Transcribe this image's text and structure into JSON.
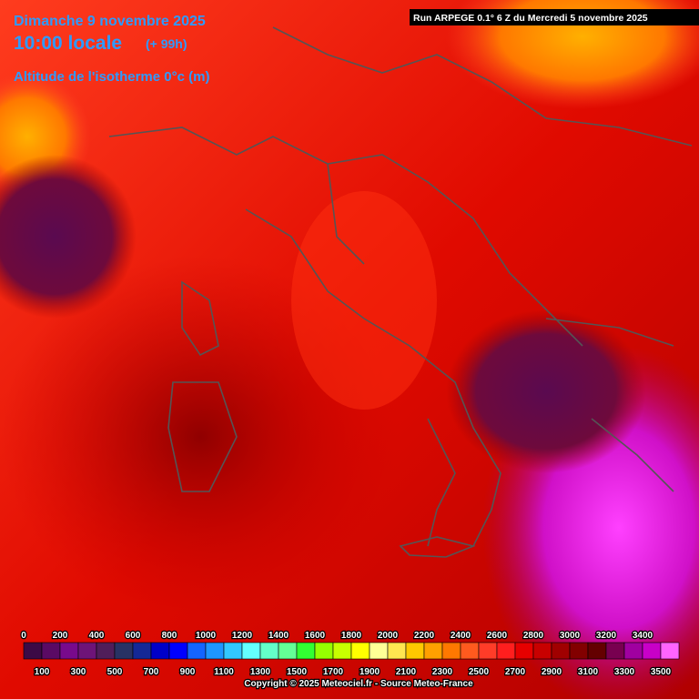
{
  "header": {
    "date": "Dimanche 9 novembre 2025",
    "time": "10:00 locale",
    "lead": "(+ 99h)",
    "field": "Altitude de l'isotherme 0°c (m)",
    "run": "Run ARPEGE 0.1° 6 Z du Mercredi 5 novembre 2025"
  },
  "legend": {
    "thresholds": [
      0,
      100,
      200,
      300,
      400,
      500,
      600,
      700,
      800,
      900,
      1000,
      1100,
      1200,
      1300,
      1400,
      1500,
      1600,
      1700,
      1800,
      1900,
      2000,
      2100,
      2200,
      2300,
      2400,
      2500,
      2600,
      2700,
      2800,
      2900,
      3000,
      3100,
      3200,
      3300,
      3400,
      3500
    ],
    "colors": [
      "#3c0a46",
      "#5a0a64",
      "#780a8c",
      "#6e1478",
      "#501e5a",
      "#283264",
      "#142896",
      "#0000c8",
      "#0000ff",
      "#1464ff",
      "#1e96ff",
      "#32c8ff",
      "#64ffff",
      "#64ffc8",
      "#64ff96",
      "#32ff32",
      "#96ff00",
      "#c8ff00",
      "#ffff00",
      "#ffff96",
      "#ffe650",
      "#ffc800",
      "#ffa000",
      "#ff7800",
      "#ff5a1e",
      "#ff3c28",
      "#ff1e1e",
      "#e60000",
      "#c80000",
      "#a00000",
      "#820000",
      "#640000",
      "#780050",
      "#a000a0",
      "#c800c8",
      "#ff64ff"
    ]
  },
  "footer": {
    "copyright": "Copyright © 2025 Meteociel.fr - Source Meteo-France"
  }
}
